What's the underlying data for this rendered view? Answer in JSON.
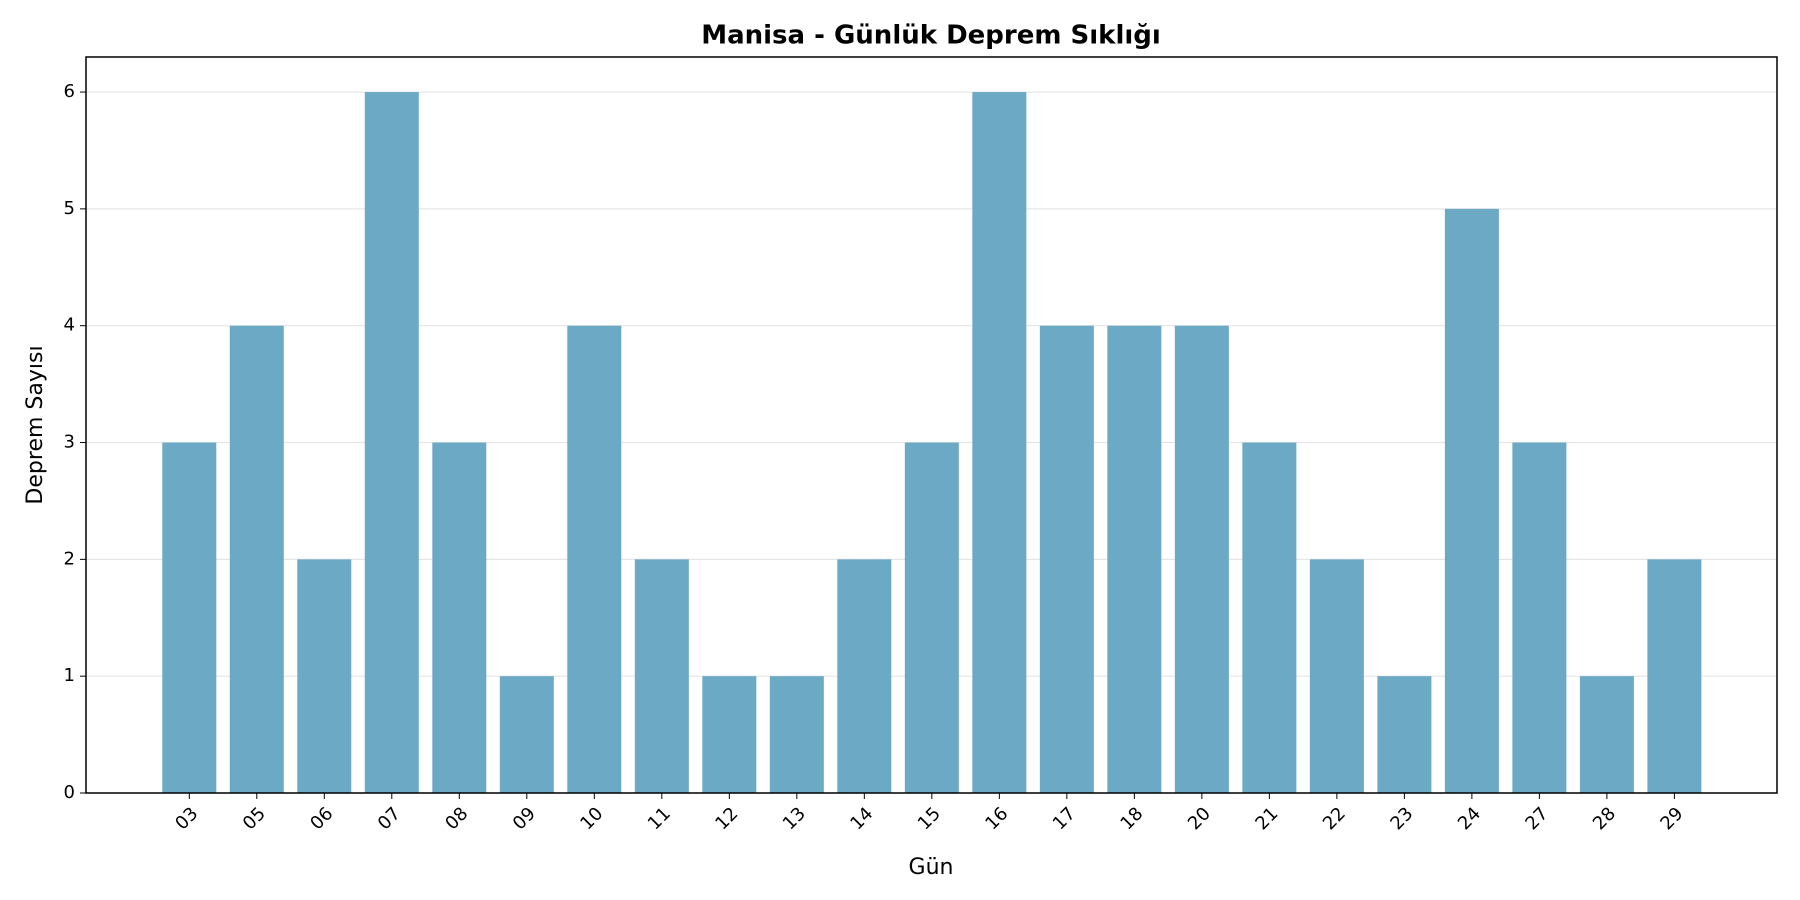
{
  "chart_data": {
    "type": "bar",
    "title": "Manisa - Günlük Deprem Sıklığı",
    "x_label": "Gün",
    "y_label": "Deprem Sayısı",
    "categories": [
      "03",
      "05",
      "06",
      "07",
      "08",
      "09",
      "10",
      "11",
      "12",
      "13",
      "14",
      "15",
      "16",
      "17",
      "18",
      "20",
      "21",
      "22",
      "23",
      "24",
      "27",
      "28",
      "29"
    ],
    "values": [
      3,
      4,
      2,
      6,
      3,
      1,
      4,
      2,
      1,
      1,
      2,
      3,
      6,
      4,
      4,
      4,
      3,
      2,
      1,
      5,
      3,
      1,
      2
    ],
    "color": "#6ba9c4",
    "ylim": [
      0,
      6.3
    ],
    "yticks": [
      0,
      1,
      2,
      3,
      4,
      5,
      6
    ],
    "grid": true
  }
}
